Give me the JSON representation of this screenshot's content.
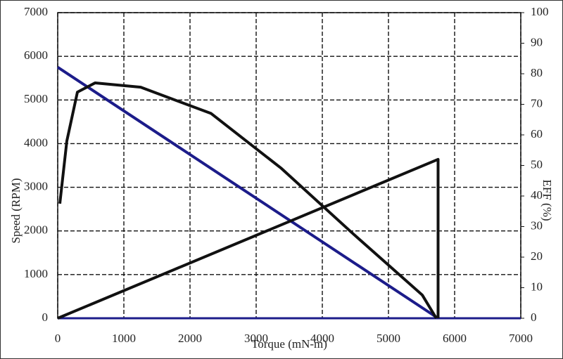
{
  "chart_data": {
    "type": "line",
    "x_label": "Torque (mN-m)",
    "y_label": "Speed (RPM)",
    "y2_label": "EFF (%)",
    "xlim": [
      0,
      7000
    ],
    "xticks": [
      0,
      1000,
      2000,
      3000,
      4000,
      5000,
      6000,
      7000
    ],
    "ylim": [
      0,
      7000
    ],
    "yticks": [
      0,
      1000,
      2000,
      3000,
      4000,
      5000,
      6000,
      7000
    ],
    "y2lim": [
      0,
      100
    ],
    "y2ticks": [
      0,
      10,
      20,
      30,
      40,
      50,
      60,
      70,
      80,
      90,
      100
    ],
    "grid": true,
    "series": [
      {
        "color": "#1c1c8a",
        "x": [
          0,
          5750
        ],
        "values": [
          5750,
          0
        ]
      },
      {
        "color": "#111111",
        "axis": "y2",
        "x": [
          32,
          138,
          298,
          564,
          1255,
          2319,
          3383,
          4447,
          5511,
          5723
        ],
        "values": [
          37.5,
          58,
          74,
          77,
          75.6,
          67,
          49,
          28,
          7.6,
          0
        ]
      },
      {
        "color": "#111111",
        "axis": "y2",
        "x": [
          0,
          5750,
          5750
        ],
        "values": [
          0,
          52,
          0
        ]
      }
    ]
  }
}
